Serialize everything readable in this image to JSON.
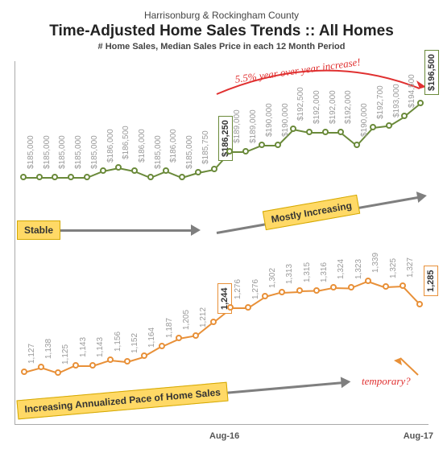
{
  "header": {
    "region": "Harrisonburg & Rockingham County",
    "title": "Time-Adjusted Home Sales Trends  ::  All Homes",
    "subtitle": "# Home Sales, Median Sales Price in each 12 Month Period"
  },
  "axis": {
    "start": "Aug-16",
    "end": "Aug-17"
  },
  "price_series": {
    "type": "line",
    "color": "#6a8a3a",
    "labels": [
      "$185,000",
      "$185,000",
      "$185,000",
      "$185,000",
      "$185,000",
      "$186,000",
      "$186,500",
      "$186,000",
      "$185,000",
      "$186,000",
      "$185,000",
      "$185,750",
      "$186,250",
      "$189,000",
      "$189,000",
      "$190,000",
      "$190,000",
      "$192,500",
      "$192,000",
      "$192,000",
      "$192,000",
      "$190,000",
      "$192,700",
      "$193,000",
      "$194,500",
      "$196,500"
    ],
    "values": [
      185000,
      185000,
      185000,
      185000,
      185000,
      186000,
      186500,
      186000,
      185000,
      186000,
      185000,
      185750,
      186250,
      189000,
      189000,
      190000,
      190000,
      192500,
      192000,
      192000,
      192000,
      190000,
      192700,
      193000,
      194500,
      196500
    ],
    "highlight_indices": [
      12,
      25
    ],
    "ymin": 180000,
    "ymax": 200000
  },
  "sales_series": {
    "type": "line",
    "color": "#e89038",
    "labels": [
      "1,127",
      "1,138",
      "1,125",
      "1,143",
      "1,143",
      "1,156",
      "1,152",
      "1,164",
      "1,187",
      "1,205",
      "1,212",
      "1,244",
      "1,276",
      "1,276",
      "1,302",
      "1,313",
      "1,315",
      "1,316",
      "1,324",
      "1,323",
      "1,339",
      "1,325",
      "1,327",
      "1,285"
    ],
    "values": [
      1127,
      1138,
      1125,
      1143,
      1143,
      1156,
      1152,
      1164,
      1187,
      1205,
      1212,
      1244,
      1276,
      1276,
      1302,
      1313,
      1315,
      1316,
      1324,
      1323,
      1339,
      1325,
      1327,
      1285
    ],
    "highlight_indices": [
      11,
      23
    ],
    "ymin": 1090,
    "ymax": 1370
  },
  "annotations": {
    "yoy": "5.5% year over year increase!",
    "stable": "Stable",
    "mostly": "Mostly Increasing",
    "pace": "Increasing Annualized Pace of Home Sales",
    "temp": "temporary?"
  }
}
